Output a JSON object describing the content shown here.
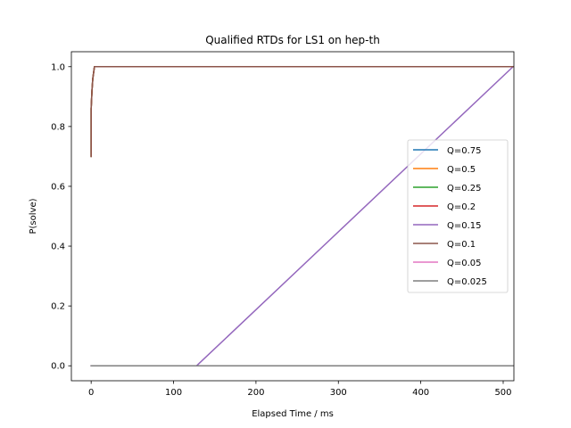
{
  "chart_data": {
    "type": "line",
    "title": "Qualified RTDs for LS1 on hep-th",
    "xlabel": "Elapsed Time / ms",
    "ylabel": "P(solve)",
    "xlim": [
      -24,
      513
    ],
    "ylim": [
      -0.05,
      1.05
    ],
    "xticks": [
      0,
      100,
      200,
      300,
      400,
      500
    ],
    "yticks": [
      0.0,
      0.2,
      0.4,
      0.6,
      0.8,
      1.0
    ],
    "xtick_labels": [
      "0",
      "100",
      "200",
      "300",
      "400",
      "500"
    ],
    "ytick_labels": [
      "0.0",
      "0.2",
      "0.4",
      "0.6",
      "0.8",
      "1.0"
    ],
    "grid": false,
    "legend_position": "center-right",
    "series": [
      {
        "name": "Q=0.75",
        "color": "#1f77b4",
        "x": [
          0,
          0,
          1,
          2,
          4,
          512
        ],
        "y": [
          0.7,
          0.86,
          0.92,
          0.96,
          1.0,
          1.0
        ]
      },
      {
        "name": "Q=0.5",
        "color": "#ff7f0e",
        "x": [
          0,
          0,
          1,
          2,
          4,
          512
        ],
        "y": [
          0.7,
          0.86,
          0.92,
          0.96,
          1.0,
          1.0
        ]
      },
      {
        "name": "Q=0.25",
        "color": "#2ca02c",
        "x": [
          0,
          0,
          1,
          2,
          4,
          512
        ],
        "y": [
          0.7,
          0.86,
          0.92,
          0.96,
          1.0,
          1.0
        ]
      },
      {
        "name": "Q=0.2",
        "color": "#d62728",
        "x": [
          0,
          0,
          1,
          2,
          4,
          512
        ],
        "y": [
          0.7,
          0.86,
          0.92,
          0.96,
          1.0,
          1.0
        ]
      },
      {
        "name": "Q=0.15",
        "color": "#9467bd",
        "x": [
          0,
          128,
          512
        ],
        "y": [
          0.0,
          0.0,
          1.0
        ]
      },
      {
        "name": "Q=0.1",
        "color": "#8c564b",
        "x": [
          0,
          0,
          1,
          2,
          4,
          512
        ],
        "y": [
          0.7,
          0.86,
          0.92,
          0.96,
          1.0,
          1.0
        ]
      },
      {
        "name": "Q=0.05",
        "color": "#e377c2",
        "x": [
          0,
          512
        ],
        "y": [
          0.0,
          0.0
        ]
      },
      {
        "name": "Q=0.025",
        "color": "#7f7f7f",
        "x": [
          0,
          512
        ],
        "y": [
          0.0,
          0.0
        ]
      }
    ]
  }
}
